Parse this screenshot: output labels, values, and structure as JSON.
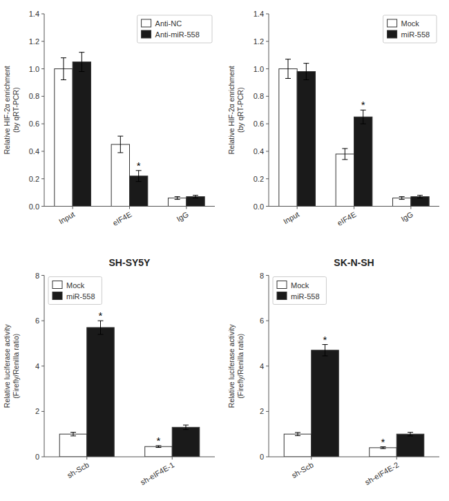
{
  "chart_data": [
    {
      "type": "bar",
      "categories": [
        "Input",
        "eIF4E",
        "IgG"
      ],
      "series": [
        {
          "name": "Anti-NC",
          "color": "#ffffff",
          "values": [
            1.0,
            0.45,
            0.06
          ],
          "errors": [
            0.08,
            0.06,
            0.01
          ]
        },
        {
          "name": "Anti-miR-558",
          "color": "#1a1a1a",
          "values": [
            1.05,
            0.22,
            0.07
          ],
          "errors": [
            0.07,
            0.04,
            0.01
          ]
        }
      ],
      "y_label": "Relative HIF-2α enrichment\n(by qRT-PCR)",
      "ylim": [
        0,
        1.4
      ],
      "yticks": [
        {
          "value": 0,
          "label": "0.0"
        },
        0.2,
        0.4,
        0.6,
        0.8,
        {
          "value": 1.0,
          "label": "1.0"
        },
        1.2,
        1.4
      ],
      "annotations": [
        {
          "text": "*",
          "category": "eIF4E",
          "series": "Anti-miR-558"
        }
      ],
      "legend": "upper right",
      "grid": false
    },
    {
      "type": "bar",
      "categories": [
        "Input",
        "eIF4E",
        "IgG"
      ],
      "series": [
        {
          "name": "Mock",
          "color": "#ffffff",
          "values": [
            1.0,
            0.38,
            0.06
          ],
          "errors": [
            0.07,
            0.04,
            0.01
          ]
        },
        {
          "name": "miR-558",
          "color": "#1a1a1a",
          "values": [
            0.98,
            0.65,
            0.07
          ],
          "errors": [
            0.06,
            0.05,
            0.01
          ]
        }
      ],
      "y_label": "Relative HIF-2α enrichment\n(by qRT-PCR)",
      "ylim": [
        0,
        1.4
      ],
      "yticks": [
        {
          "value": 0,
          "label": "0.0"
        },
        0.2,
        0.4,
        0.6,
        0.8,
        {
          "value": 1.0,
          "label": "1.0"
        },
        1.2,
        1.4
      ],
      "annotations": [
        {
          "text": "*",
          "category": "eIF4E",
          "series": "miR-558"
        }
      ],
      "legend": "upper right",
      "grid": false
    },
    {
      "type": "bar",
      "title": "SH-SY5Y",
      "categories": [
        "sh-Scb",
        "sh-eIF4E-1"
      ],
      "series": [
        {
          "name": "Mock",
          "color": "#ffffff",
          "values": [
            1.0,
            0.45
          ],
          "errors": [
            0.08,
            0.04
          ]
        },
        {
          "name": "miR-558",
          "color": "#1a1a1a",
          "values": [
            5.7,
            1.3
          ],
          "errors": [
            0.3,
            0.1
          ]
        }
      ],
      "y_label": "Relative luciferase activity\n(Firefly/Renilla ratio)",
      "ylim": [
        0,
        8
      ],
      "yticks": [
        0,
        2,
        4,
        6,
        8
      ],
      "annotations": [
        {
          "text": "*",
          "category": "sh-Scb",
          "series": "miR-558"
        },
        {
          "text": "*",
          "category": "sh-eIF4E-1",
          "series": "Mock"
        }
      ],
      "legend": "upper left",
      "grid": false
    },
    {
      "type": "bar",
      "title": "SK-N-SH",
      "categories": [
        "sh-Scb",
        "sh-eIF4E-2"
      ],
      "series": [
        {
          "name": "Mock",
          "color": "#ffffff",
          "values": [
            1.0,
            0.4
          ],
          "errors": [
            0.07,
            0.04
          ]
        },
        {
          "name": "miR-558",
          "color": "#1a1a1a",
          "values": [
            4.7,
            1.0
          ],
          "errors": [
            0.25,
            0.08
          ]
        }
      ],
      "y_label": "Relative luciferase activity\n(Firefly/Renilla ratio)",
      "ylim": [
        0,
        8
      ],
      "yticks": [
        0,
        2,
        4,
        6,
        8
      ],
      "annotations": [
        {
          "text": "*",
          "category": "sh-Scb",
          "series": "miR-558"
        },
        {
          "text": "*",
          "category": "sh-eIF4E-2",
          "series": "Mock"
        }
      ],
      "legend": "upper left",
      "grid": false
    }
  ]
}
